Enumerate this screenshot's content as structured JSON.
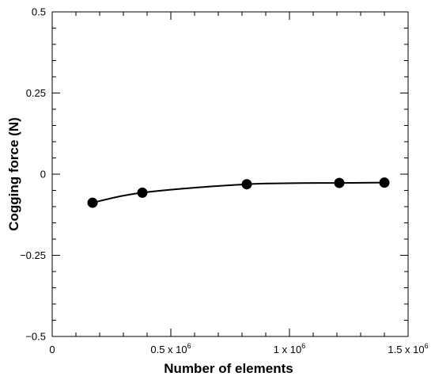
{
  "chart_data": {
    "type": "line",
    "title": "",
    "xlabel": "Number of elements",
    "ylabel": "Cogging force (N)",
    "xlim": [
      0,
      1500000
    ],
    "ylim": [
      -0.5,
      0.5
    ],
    "x_ticks": [
      {
        "value": 0,
        "mantissa": "0",
        "exponent": ""
      },
      {
        "value": 500000,
        "mantissa": "0.5 x 10",
        "exponent": "6"
      },
      {
        "value": 1000000,
        "mantissa": "1 x 10",
        "exponent": "6"
      },
      {
        "value": 1500000,
        "mantissa": "1.5 x 10",
        "exponent": "6"
      }
    ],
    "y_ticks": [
      {
        "value": 0.5,
        "label": "0.5"
      },
      {
        "value": 0.25,
        "label": "0.25"
      },
      {
        "value": 0,
        "label": "0"
      },
      {
        "value": -0.25,
        "label": "-0.25"
      },
      {
        "value": -0.5,
        "label": "-0.5"
      }
    ],
    "x_minor_step": 100000,
    "y_minor_step": 0.05,
    "grid": false,
    "legend": "none",
    "series": [
      {
        "x": [
          170000,
          380000,
          820000,
          1210000,
          1400000
        ],
        "y": [
          -0.088,
          -0.057,
          -0.031,
          -0.027,
          -0.026
        ],
        "color": "#000000",
        "marker": "filled-circle"
      }
    ]
  }
}
